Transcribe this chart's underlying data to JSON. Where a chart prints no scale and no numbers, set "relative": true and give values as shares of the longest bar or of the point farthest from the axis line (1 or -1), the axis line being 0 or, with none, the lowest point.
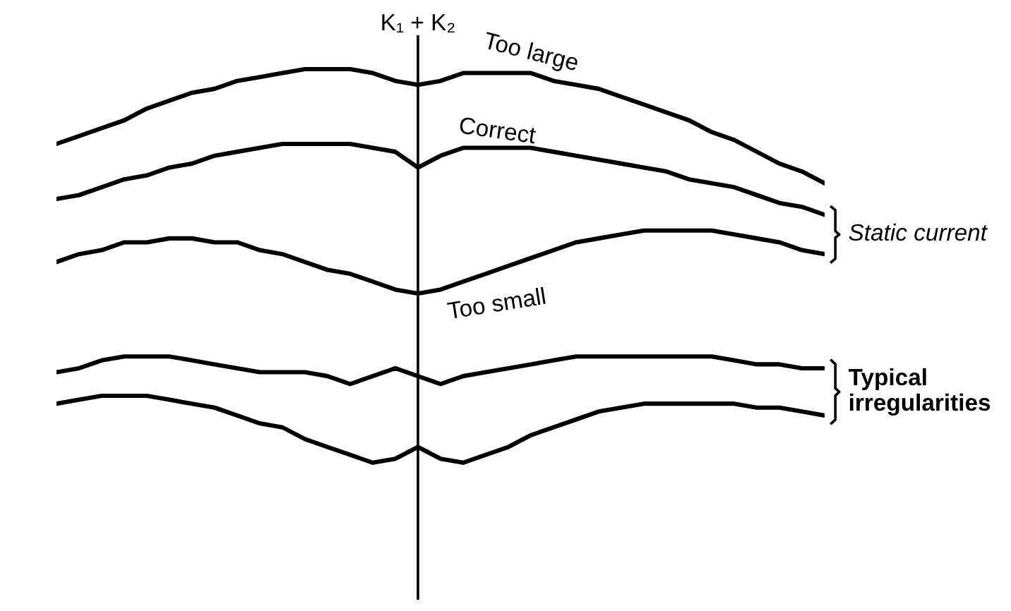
{
  "chart_data": {
    "type": "line",
    "relative": true,
    "legend": false,
    "marker": "none",
    "line_style": "solid",
    "categories": [
      null,
      null,
      null,
      null,
      null,
      null,
      null,
      null,
      null,
      null,
      null,
      null,
      null,
      null,
      null,
      null,
      null,
      null,
      null,
      null,
      null,
      null,
      null,
      null,
      null,
      null,
      null,
      null,
      null,
      null,
      null,
      null,
      null,
      null,
      null
    ],
    "series": [
      {
        "name": "Too large",
        "color": "#000000",
        "values": [
          0.81,
          0.83,
          0.85,
          0.87,
          0.9,
          0.92,
          0.94,
          0.95,
          0.97,
          0.98,
          0.99,
          1.0,
          1.0,
          1.0,
          0.99,
          0.97,
          0.96,
          0.97,
          0.99,
          0.99,
          0.99,
          0.99,
          0.97,
          0.96,
          0.95,
          0.93,
          0.91,
          0.89,
          0.87,
          0.84,
          0.82,
          0.79,
          0.76,
          0.74,
          0.71
        ]
      },
      {
        "name": "Correct",
        "color": "#000000",
        "values": [
          0.67,
          0.68,
          0.7,
          0.72,
          0.73,
          0.75,
          0.76,
          0.78,
          0.79,
          0.8,
          0.81,
          0.81,
          0.81,
          0.81,
          0.8,
          0.79,
          0.75,
          0.78,
          0.8,
          0.8,
          0.8,
          0.8,
          0.79,
          0.78,
          0.77,
          0.76,
          0.75,
          0.74,
          0.72,
          0.71,
          0.7,
          0.68,
          0.66,
          0.65,
          0.63
        ]
      },
      {
        "name": "Too small",
        "color": "#000000",
        "values": [
          0.51,
          0.53,
          0.54,
          0.56,
          0.56,
          0.57,
          0.57,
          0.56,
          0.56,
          0.54,
          0.53,
          0.51,
          0.49,
          0.48,
          0.46,
          0.44,
          0.43,
          0.44,
          0.46,
          0.48,
          0.5,
          0.52,
          0.54,
          0.56,
          0.57,
          0.58,
          0.59,
          0.59,
          0.59,
          0.59,
          0.58,
          0.57,
          0.56,
          0.54,
          0.53
        ]
      },
      {
        "color": "#000000",
        "values": [
          0.23,
          0.24,
          0.26,
          0.27,
          0.27,
          0.27,
          0.26,
          0.25,
          0.24,
          0.23,
          0.23,
          0.23,
          0.22,
          0.2,
          0.22,
          0.24,
          0.22,
          0.2,
          0.22,
          0.23,
          0.24,
          0.25,
          0.26,
          0.27,
          0.27,
          0.27,
          0.27,
          0.27,
          0.27,
          0.27,
          0.26,
          0.25,
          0.25,
          0.24,
          0.24
        ]
      },
      {
        "color": "#000000",
        "values": [
          0.15,
          0.16,
          0.17,
          0.17,
          0.17,
          0.16,
          0.15,
          0.14,
          0.12,
          0.1,
          0.09,
          0.06,
          0.04,
          0.02,
          0.0,
          0.01,
          0.04,
          0.01,
          0.0,
          0.02,
          0.04,
          0.07,
          0.09,
          0.11,
          0.13,
          0.14,
          0.15,
          0.15,
          0.15,
          0.15,
          0.15,
          0.14,
          0.14,
          0.13,
          0.12
        ]
      }
    ],
    "annotations": [
      "Static current",
      "Typical\nirregularities",
      "K₁ + K₂"
    ]
  }
}
